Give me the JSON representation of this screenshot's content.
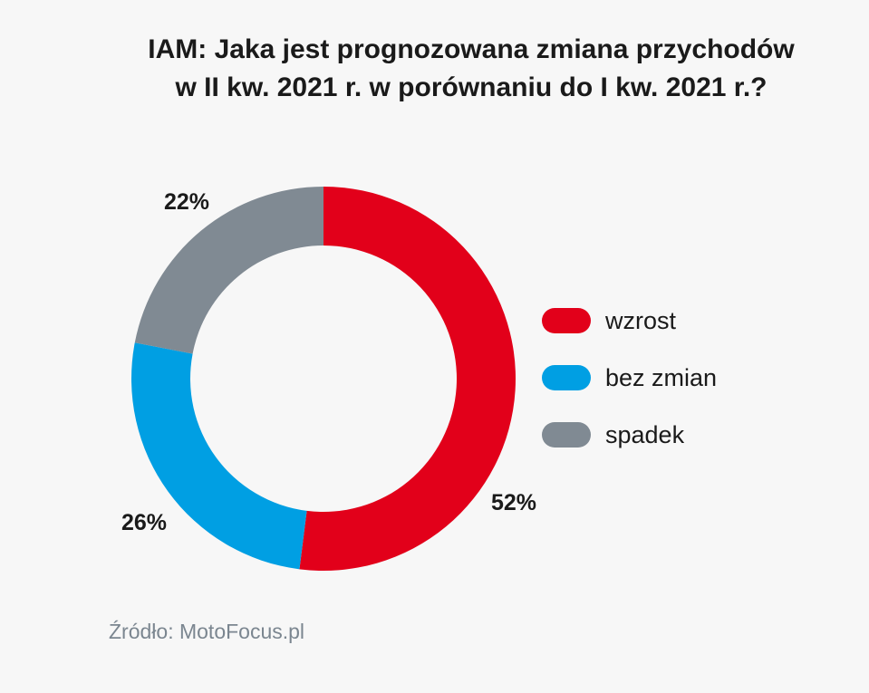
{
  "chart_data": {
    "type": "pie",
    "title_lines": [
      "IAM: Jaka jest prognozowana zmiana przychodów",
      "w II kw. 2021 r. w porównaniu do I kw. 2021 r.?"
    ],
    "categories": [
      "wzrost",
      "bez zmian",
      "spadek"
    ],
    "values": [
      52,
      26,
      22
    ],
    "labels": [
      "52%",
      "26%",
      "22%"
    ],
    "colors": [
      "#e2001a",
      "#009fe3",
      "#808a93"
    ],
    "donut": true,
    "legend_position": "right"
  },
  "source": "Źródło: MotoFocus.pl"
}
